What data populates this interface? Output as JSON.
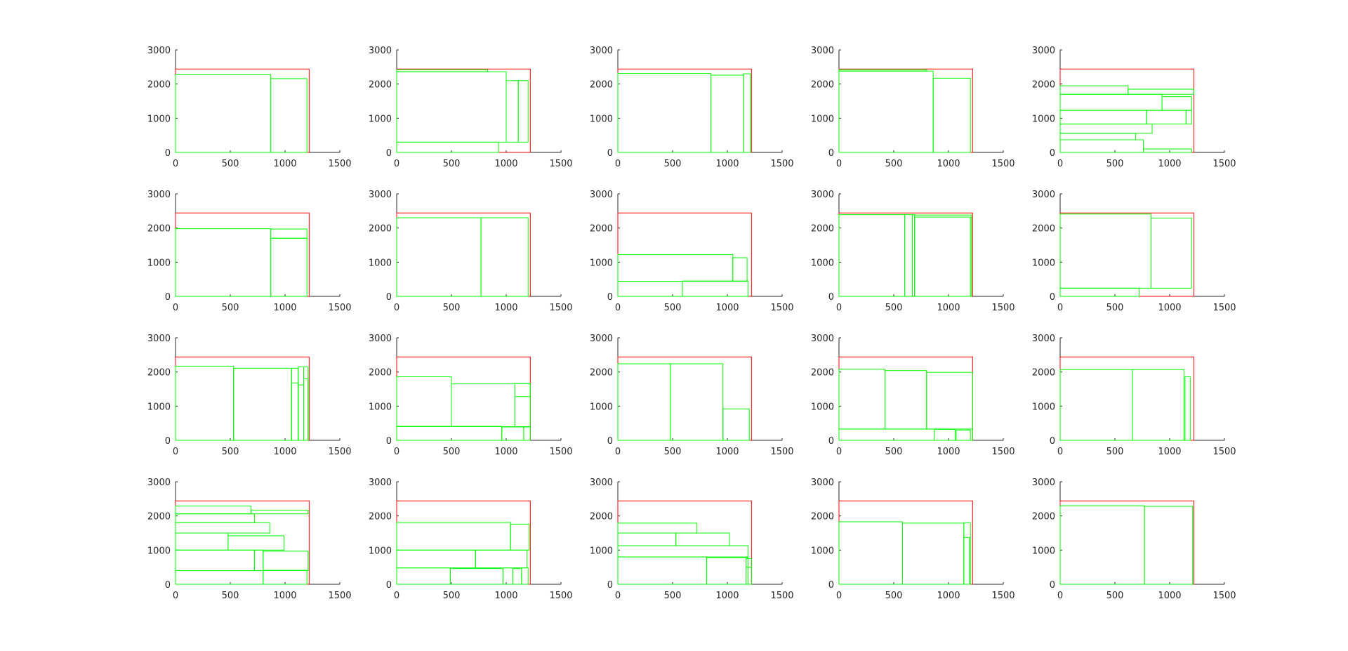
{
  "figure": {
    "background": "#ffffff",
    "sheet_color": "#ff0000",
    "piece_color": "#00ff00",
    "axis_color": "#262626"
  },
  "chart_data": [
    {
      "type": "layout",
      "xlim": [
        0,
        1500
      ],
      "ylim": [
        0,
        3000
      ],
      "xticks": [
        0,
        500,
        1000,
        1500
      ],
      "yticks": [
        0,
        1000,
        2000,
        3000
      ],
      "sheet": {
        "x": 0,
        "y": 0,
        "w": 1220,
        "h": 2440
      },
      "pieces": [
        {
          "x": 0,
          "y": 0,
          "w": 870,
          "h": 2270
        },
        {
          "x": 870,
          "y": 0,
          "w": 330,
          "h": 2160
        }
      ]
    },
    {
      "type": "layout",
      "xlim": [
        0,
        1500
      ],
      "ylim": [
        0,
        3000
      ],
      "xticks": [
        0,
        500,
        1000,
        1500
      ],
      "yticks": [
        0,
        1000,
        2000,
        3000
      ],
      "sheet": {
        "x": 0,
        "y": 0,
        "w": 1220,
        "h": 2440
      },
      "pieces": [
        {
          "x": 0,
          "y": 2360,
          "w": 830,
          "h": 60
        },
        {
          "x": 0,
          "y": 300,
          "w": 1000,
          "h": 2060
        },
        {
          "x": 0,
          "y": 0,
          "w": 930,
          "h": 300
        },
        {
          "x": 1000,
          "y": 300,
          "w": 110,
          "h": 1800
        },
        {
          "x": 1110,
          "y": 300,
          "w": 90,
          "h": 1800
        }
      ]
    },
    {
      "type": "layout",
      "xlim": [
        0,
        1500
      ],
      "ylim": [
        0,
        3000
      ],
      "xticks": [
        0,
        500,
        1000,
        1500
      ],
      "yticks": [
        0,
        1000,
        2000,
        3000
      ],
      "sheet": {
        "x": 0,
        "y": 0,
        "w": 1220,
        "h": 2440
      },
      "pieces": [
        {
          "x": 0,
          "y": 0,
          "w": 850,
          "h": 2310
        },
        {
          "x": 850,
          "y": 0,
          "w": 300,
          "h": 2260
        },
        {
          "x": 1150,
          "y": 0,
          "w": 60,
          "h": 2300
        }
      ]
    },
    {
      "type": "layout",
      "xlim": [
        0,
        1500
      ],
      "ylim": [
        0,
        3000
      ],
      "xticks": [
        0,
        500,
        1000,
        1500
      ],
      "yticks": [
        0,
        1000,
        2000,
        3000
      ],
      "sheet": {
        "x": 0,
        "y": 0,
        "w": 1220,
        "h": 2440
      },
      "pieces": [
        {
          "x": 0,
          "y": 2380,
          "w": 800,
          "h": 40
        },
        {
          "x": 0,
          "y": 0,
          "w": 860,
          "h": 2380
        },
        {
          "x": 860,
          "y": 0,
          "w": 340,
          "h": 2170
        }
      ]
    },
    {
      "type": "layout",
      "xlim": [
        0,
        1500
      ],
      "ylim": [
        0,
        3000
      ],
      "xticks": [
        0,
        500,
        1000,
        1500
      ],
      "yticks": [
        0,
        1000,
        2000,
        3000
      ],
      "sheet": {
        "x": 0,
        "y": 0,
        "w": 1220,
        "h": 2440
      },
      "pieces": [
        {
          "x": 0,
          "y": 1700,
          "w": 620,
          "h": 250
        },
        {
          "x": 620,
          "y": 1700,
          "w": 600,
          "h": 150
        },
        {
          "x": 0,
          "y": 1230,
          "w": 930,
          "h": 470
        },
        {
          "x": 930,
          "y": 1230,
          "w": 270,
          "h": 400
        },
        {
          "x": 0,
          "y": 830,
          "w": 790,
          "h": 400
        },
        {
          "x": 790,
          "y": 830,
          "w": 360,
          "h": 400
        },
        {
          "x": 1150,
          "y": 830,
          "w": 50,
          "h": 400
        },
        {
          "x": 0,
          "y": 560,
          "w": 840,
          "h": 270
        },
        {
          "x": 0,
          "y": 370,
          "w": 690,
          "h": 190
        },
        {
          "x": 0,
          "y": 0,
          "w": 760,
          "h": 370
        },
        {
          "x": 760,
          "y": 0,
          "w": 440,
          "h": 100
        }
      ]
    },
    {
      "type": "layout",
      "xlim": [
        0,
        1500
      ],
      "ylim": [
        0,
        3000
      ],
      "xticks": [
        0,
        500,
        1000,
        1500
      ],
      "yticks": [
        0,
        1000,
        2000,
        3000
      ],
      "sheet": {
        "x": 0,
        "y": 0,
        "w": 1220,
        "h": 2440
      },
      "pieces": [
        {
          "x": 0,
          "y": 0,
          "w": 870,
          "h": 1980
        },
        {
          "x": 870,
          "y": 0,
          "w": 330,
          "h": 1700
        },
        {
          "x": 870,
          "y": 1700,
          "w": 330,
          "h": 270
        }
      ]
    },
    {
      "type": "layout",
      "xlim": [
        0,
        1500
      ],
      "ylim": [
        0,
        3000
      ],
      "xticks": [
        0,
        500,
        1000,
        1500
      ],
      "yticks": [
        0,
        1000,
        2000,
        3000
      ],
      "sheet": {
        "x": 0,
        "y": 0,
        "w": 1220,
        "h": 2440
      },
      "pieces": [
        {
          "x": 0,
          "y": 0,
          "w": 770,
          "h": 2300
        },
        {
          "x": 770,
          "y": 0,
          "w": 430,
          "h": 2300
        }
      ]
    },
    {
      "type": "layout",
      "xlim": [
        0,
        1500
      ],
      "ylim": [
        0,
        3000
      ],
      "xticks": [
        0,
        500,
        1000,
        1500
      ],
      "yticks": [
        0,
        1000,
        2000,
        3000
      ],
      "sheet": {
        "x": 0,
        "y": 0,
        "w": 1220,
        "h": 2440
      },
      "pieces": [
        {
          "x": 0,
          "y": 440,
          "w": 1050,
          "h": 780
        },
        {
          "x": 1050,
          "y": 440,
          "w": 130,
          "h": 690
        },
        {
          "x": 0,
          "y": 0,
          "w": 590,
          "h": 440
        },
        {
          "x": 590,
          "y": 0,
          "w": 600,
          "h": 450
        }
      ]
    },
    {
      "type": "layout",
      "xlim": [
        0,
        1500
      ],
      "ylim": [
        0,
        3000
      ],
      "xticks": [
        0,
        500,
        1000,
        1500
      ],
      "yticks": [
        0,
        1000,
        2000,
        3000
      ],
      "sheet": {
        "x": 0,
        "y": 0,
        "w": 1220,
        "h": 2440
      },
      "pieces": [
        {
          "x": 0,
          "y": 0,
          "w": 600,
          "h": 2390
        },
        {
          "x": 600,
          "y": 0,
          "w": 70,
          "h": 2390
        },
        {
          "x": 670,
          "y": 0,
          "w": 20,
          "h": 2390
        },
        {
          "x": 690,
          "y": 0,
          "w": 520,
          "h": 2380
        },
        {
          "x": 690,
          "y": 0,
          "w": 510,
          "h": 2320
        }
      ]
    },
    {
      "type": "layout",
      "xlim": [
        0,
        1500
      ],
      "ylim": [
        0,
        3000
      ],
      "xticks": [
        0,
        500,
        1000,
        1500
      ],
      "yticks": [
        0,
        1000,
        2000,
        3000
      ],
      "sheet": {
        "x": 0,
        "y": 0,
        "w": 1220,
        "h": 2440
      },
      "pieces": [
        {
          "x": 0,
          "y": 240,
          "w": 830,
          "h": 2170
        },
        {
          "x": 830,
          "y": 240,
          "w": 370,
          "h": 2050
        },
        {
          "x": 0,
          "y": 0,
          "w": 720,
          "h": 240
        }
      ]
    },
    {
      "type": "layout",
      "xlim": [
        0,
        1500
      ],
      "ylim": [
        0,
        3000
      ],
      "xticks": [
        0,
        500,
        1000,
        1500
      ],
      "yticks": [
        0,
        1000,
        2000,
        3000
      ],
      "sheet": {
        "x": 0,
        "y": 0,
        "w": 1220,
        "h": 2440
      },
      "pieces": [
        {
          "x": 0,
          "y": 0,
          "w": 530,
          "h": 2170
        },
        {
          "x": 530,
          "y": 0,
          "w": 530,
          "h": 2110
        },
        {
          "x": 1060,
          "y": 0,
          "w": 60,
          "h": 2110
        },
        {
          "x": 1060,
          "y": 0,
          "w": 60,
          "h": 1680
        },
        {
          "x": 1120,
          "y": 0,
          "w": 50,
          "h": 2150
        },
        {
          "x": 1120,
          "y": 0,
          "w": 50,
          "h": 1620
        },
        {
          "x": 1170,
          "y": 0,
          "w": 40,
          "h": 2150
        },
        {
          "x": 1170,
          "y": 0,
          "w": 40,
          "h": 1800
        }
      ]
    },
    {
      "type": "layout",
      "xlim": [
        0,
        1500
      ],
      "ylim": [
        0,
        3000
      ],
      "xticks": [
        0,
        500,
        1000,
        1500
      ],
      "yticks": [
        0,
        1000,
        2000,
        3000
      ],
      "sheet": {
        "x": 0,
        "y": 0,
        "w": 1220,
        "h": 2440
      },
      "pieces": [
        {
          "x": 0,
          "y": 400,
          "w": 500,
          "h": 1460
        },
        {
          "x": 500,
          "y": 400,
          "w": 580,
          "h": 1250
        },
        {
          "x": 1080,
          "y": 400,
          "w": 140,
          "h": 1260
        },
        {
          "x": 1080,
          "y": 1280,
          "w": 140,
          "h": 380
        },
        {
          "x": 0,
          "y": 0,
          "w": 960,
          "h": 410
        },
        {
          "x": 960,
          "y": 0,
          "w": 200,
          "h": 390
        },
        {
          "x": 1160,
          "y": 0,
          "w": 60,
          "h": 390
        }
      ]
    },
    {
      "type": "layout",
      "xlim": [
        0,
        1500
      ],
      "ylim": [
        0,
        3000
      ],
      "xticks": [
        0,
        500,
        1000,
        1500
      ],
      "yticks": [
        0,
        1000,
        2000,
        3000
      ],
      "sheet": {
        "x": 0,
        "y": 0,
        "w": 1220,
        "h": 2440
      },
      "pieces": [
        {
          "x": 0,
          "y": 0,
          "w": 480,
          "h": 2240
        },
        {
          "x": 480,
          "y": 0,
          "w": 480,
          "h": 2240
        },
        {
          "x": 960,
          "y": 0,
          "w": 240,
          "h": 920
        }
      ]
    },
    {
      "type": "layout",
      "xlim": [
        0,
        1500
      ],
      "ylim": [
        0,
        3000
      ],
      "xticks": [
        0,
        500,
        1000,
        1500
      ],
      "yticks": [
        0,
        1000,
        2000,
        3000
      ],
      "sheet": {
        "x": 0,
        "y": 0,
        "w": 1220,
        "h": 2440
      },
      "pieces": [
        {
          "x": 0,
          "y": 330,
          "w": 420,
          "h": 1750
        },
        {
          "x": 420,
          "y": 330,
          "w": 380,
          "h": 1710
        },
        {
          "x": 800,
          "y": 330,
          "w": 420,
          "h": 1660
        },
        {
          "x": 0,
          "y": 0,
          "w": 1220,
          "h": 330
        },
        {
          "x": 870,
          "y": 0,
          "w": 190,
          "h": 320
        },
        {
          "x": 1070,
          "y": 0,
          "w": 130,
          "h": 300
        }
      ]
    },
    {
      "type": "layout",
      "xlim": [
        0,
        1500
      ],
      "ylim": [
        0,
        3000
      ],
      "xticks": [
        0,
        500,
        1000,
        1500
      ],
      "yticks": [
        0,
        1000,
        2000,
        3000
      ],
      "sheet": {
        "x": 0,
        "y": 0,
        "w": 1220,
        "h": 2440
      },
      "pieces": [
        {
          "x": 0,
          "y": 0,
          "w": 660,
          "h": 2070
        },
        {
          "x": 660,
          "y": 0,
          "w": 470,
          "h": 2070
        },
        {
          "x": 1140,
          "y": 0,
          "w": 50,
          "h": 1860
        }
      ]
    },
    {
      "type": "layout",
      "xlim": [
        0,
        1500
      ],
      "ylim": [
        0,
        3000
      ],
      "xticks": [
        0,
        500,
        1000,
        1500
      ],
      "yticks": [
        0,
        1000,
        2000,
        3000
      ],
      "sheet": {
        "x": 0,
        "y": 0,
        "w": 1220,
        "h": 2440
      },
      "pieces": [
        {
          "x": 0,
          "y": 2060,
          "w": 690,
          "h": 230
        },
        {
          "x": 690,
          "y": 2060,
          "w": 520,
          "h": 110
        },
        {
          "x": 0,
          "y": 1800,
          "w": 720,
          "h": 260
        },
        {
          "x": 0,
          "y": 1500,
          "w": 860,
          "h": 300
        },
        {
          "x": 0,
          "y": 1000,
          "w": 480,
          "h": 500
        },
        {
          "x": 480,
          "y": 1000,
          "w": 510,
          "h": 420
        },
        {
          "x": 0,
          "y": 400,
          "w": 720,
          "h": 600
        },
        {
          "x": 720,
          "y": 400,
          "w": 80,
          "h": 600
        },
        {
          "x": 800,
          "y": 400,
          "w": 410,
          "h": 570
        },
        {
          "x": 0,
          "y": 0,
          "w": 800,
          "h": 400
        },
        {
          "x": 800,
          "y": 0,
          "w": 400,
          "h": 410
        }
      ]
    },
    {
      "type": "layout",
      "xlim": [
        0,
        1500
      ],
      "ylim": [
        0,
        3000
      ],
      "xticks": [
        0,
        500,
        1000,
        1500
      ],
      "yticks": [
        0,
        1000,
        2000,
        3000
      ],
      "sheet": {
        "x": 0,
        "y": 0,
        "w": 1220,
        "h": 2440
      },
      "pieces": [
        {
          "x": 0,
          "y": 1000,
          "w": 1040,
          "h": 810
        },
        {
          "x": 1040,
          "y": 1000,
          "w": 170,
          "h": 760
        },
        {
          "x": 0,
          "y": 480,
          "w": 720,
          "h": 520
        },
        {
          "x": 720,
          "y": 480,
          "w": 470,
          "h": 520
        },
        {
          "x": 0,
          "y": 0,
          "w": 490,
          "h": 480
        },
        {
          "x": 490,
          "y": 0,
          "w": 480,
          "h": 460
        },
        {
          "x": 970,
          "y": 0,
          "w": 90,
          "h": 480
        },
        {
          "x": 1060,
          "y": 0,
          "w": 80,
          "h": 460
        },
        {
          "x": 1140,
          "y": 0,
          "w": 60,
          "h": 480
        }
      ]
    },
    {
      "type": "layout",
      "xlim": [
        0,
        1500
      ],
      "ylim": [
        0,
        3000
      ],
      "xticks": [
        0,
        500,
        1000,
        1500
      ],
      "yticks": [
        0,
        1000,
        2000,
        3000
      ],
      "sheet": {
        "x": 0,
        "y": 0,
        "w": 1220,
        "h": 2440
      },
      "pieces": [
        {
          "x": 0,
          "y": 1500,
          "w": 720,
          "h": 290
        },
        {
          "x": 0,
          "y": 1130,
          "w": 530,
          "h": 370
        },
        {
          "x": 530,
          "y": 1130,
          "w": 490,
          "h": 370
        },
        {
          "x": 0,
          "y": 800,
          "w": 1190,
          "h": 330
        },
        {
          "x": 0,
          "y": 0,
          "w": 810,
          "h": 800
        },
        {
          "x": 810,
          "y": 0,
          "w": 380,
          "h": 780
        },
        {
          "x": 1170,
          "y": 500,
          "w": 50,
          "h": 250
        },
        {
          "x": 1170,
          "y": 0,
          "w": 50,
          "h": 500
        }
      ]
    },
    {
      "type": "layout",
      "xlim": [
        0,
        1500
      ],
      "ylim": [
        0,
        3000
      ],
      "xticks": [
        0,
        500,
        1000,
        1500
      ],
      "yticks": [
        0,
        1000,
        2000,
        3000
      ],
      "sheet": {
        "x": 0,
        "y": 0,
        "w": 1220,
        "h": 2440
      },
      "pieces": [
        {
          "x": 0,
          "y": 0,
          "w": 580,
          "h": 1830
        },
        {
          "x": 580,
          "y": 0,
          "w": 560,
          "h": 1790
        },
        {
          "x": 1140,
          "y": 0,
          "w": 60,
          "h": 1800
        },
        {
          "x": 1140,
          "y": 0,
          "w": 50,
          "h": 1370
        }
      ]
    },
    {
      "type": "layout",
      "xlim": [
        0,
        1500
      ],
      "ylim": [
        0,
        3000
      ],
      "xticks": [
        0,
        500,
        1000,
        1500
      ],
      "yticks": [
        0,
        1000,
        2000,
        3000
      ],
      "sheet": {
        "x": 0,
        "y": 0,
        "w": 1220,
        "h": 2440
      },
      "pieces": [
        {
          "x": 0,
          "y": 0,
          "w": 770,
          "h": 2300
        },
        {
          "x": 770,
          "y": 0,
          "w": 440,
          "h": 2280
        }
      ]
    }
  ]
}
